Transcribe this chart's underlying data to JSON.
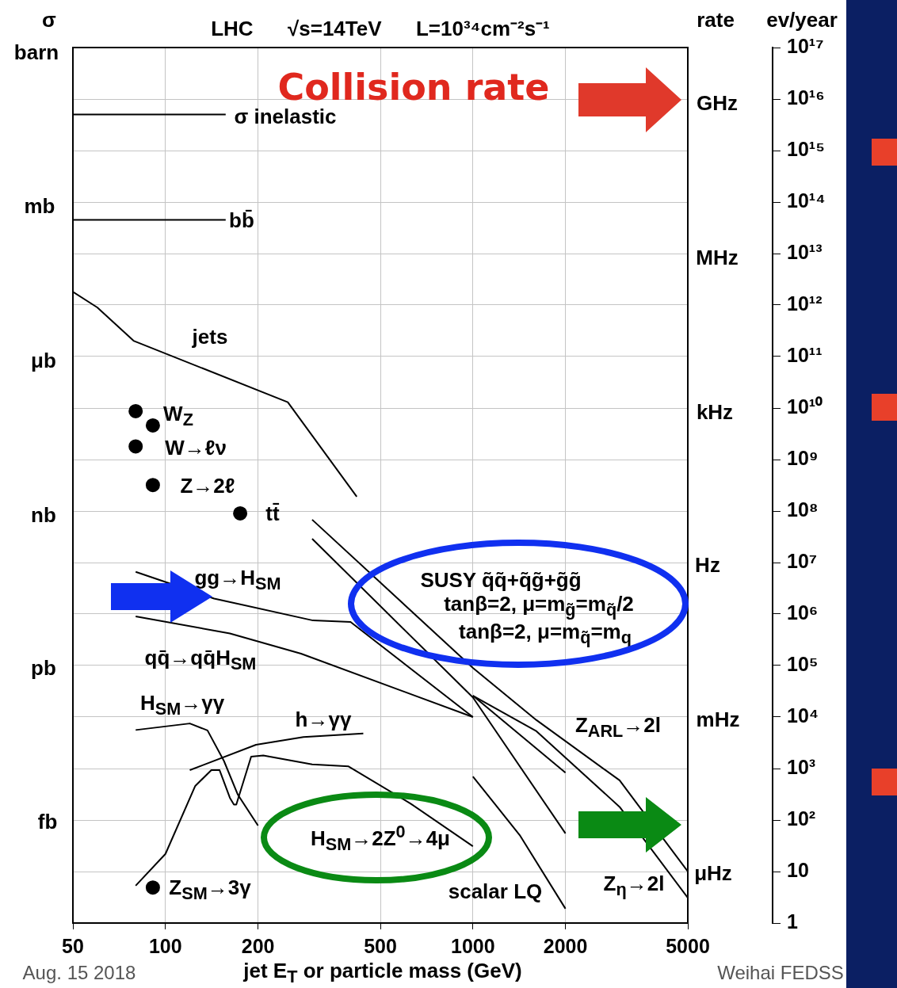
{
  "chart_data": {
    "type": "line",
    "title": "LHC      √s=14TeV      L=10³⁴cm⁻²s⁻¹",
    "xlabel": "jet E$_{T}$ or particle mass (GeV)",
    "ylabel": "ev/year",
    "log": "xy",
    "grid": true,
    "xlim": [
      50,
      5000
    ],
    "xticks": [
      50,
      100,
      200,
      500,
      1000,
      2000,
      5000
    ],
    "ylim": [
      1,
      1e+17
    ],
    "yticks": [
      {
        "value": 1e+17,
        "label": "10¹⁷"
      },
      {
        "value": 1e+16,
        "label": "10¹⁶"
      },
      {
        "value": 1000000000000000.0,
        "label": "10¹⁵"
      },
      {
        "value": 100000000000000.0,
        "label": "10¹⁴"
      },
      {
        "value": 10000000000000.0,
        "label": "10¹³"
      },
      {
        "value": 1000000000000.0,
        "label": "10¹²"
      },
      {
        "value": 100000000000.0,
        "label": "10¹¹"
      },
      {
        "value": 10000000000.0,
        "label": "10¹⁰"
      },
      {
        "value": 1000000000.0,
        "label": "10⁹"
      },
      {
        "value": 100000000.0,
        "label": "10⁸"
      },
      {
        "value": 10000000.0,
        "label": "10⁷"
      },
      {
        "value": 1000000.0,
        "label": "10⁶"
      },
      {
        "value": 100000.0,
        "label": "10⁵"
      },
      {
        "value": 10000.0,
        "label": "10⁴"
      },
      {
        "value": 1000,
        "label": "10³"
      },
      {
        "value": 100,
        "label": "10²"
      },
      10,
      1
    ],
    "series": [
      {
        "marker": "none",
        "color": "#000000",
        "x": [
          50,
          157
        ],
        "values": [
          5000000000000000.0,
          5000000000000000.0
        ]
      },
      {
        "marker": "none",
        "color": "#000000",
        "x": [
          50,
          157
        ],
        "values": [
          45000000000000.0,
          45000000000000.0
        ]
      },
      {
        "marker": "none",
        "color": "#000000",
        "x": [
          50,
          60,
          79,
          250,
          419
        ],
        "values": [
          1800000000000.0,
          900000000000.0,
          200000000000.0,
          13000000000.0,
          190000000.0
        ]
      },
      {
        "marker": "none",
        "color": "#000000",
        "x": [
          80,
          144,
          302,
          400,
          1000
        ],
        "values": [
          6600000.0,
          2000000.0,
          750000.0,
          700000.0,
          10000.0
        ]
      },
      {
        "marker": "none",
        "color": "#000000",
        "x": [
          80,
          162,
          276,
          1000
        ],
        "values": [
          900000.0,
          420000.0,
          170000.0,
          10000.0
        ]
      },
      {
        "marker": "none",
        "color": "#000000",
        "x": [
          80,
          120,
          137,
          155,
          172,
          200
        ],
        "values": [
          5600,
          7500,
          5500,
          1400,
          310,
          78
        ]
      },
      {
        "marker": "none",
        "color": "#000000",
        "x": [
          80,
          100,
          125,
          141,
          150,
          162,
          167,
          170,
          190,
          208,
          300,
          394,
          626,
          1000
        ],
        "values": [
          5.3,
          22,
          460,
          930,
          930,
          270,
          200,
          200,
          1700,
          1800,
          1200,
          1100,
          210,
          31
        ]
      },
      {
        "marker": "none",
        "color": "#000000",
        "x": [
          120,
          197,
          281,
          440
        ],
        "values": [
          930,
          2900,
          4100,
          4800
        ]
      },
      {
        "marker": "none",
        "color": "#000000",
        "x": [
          300,
          1000,
          1610,
          3000,
          5000
        ],
        "values": [
          68000000.0,
          90000.0,
          8700,
          590,
          10
        ]
      },
      {
        "marker": "none",
        "color": "#000000",
        "x": [
          300,
          1000,
          2000
        ],
        "values": [
          29000000.0,
          24000.0,
          55
        ]
      },
      {
        "marker": "none",
        "color": "#000000",
        "x": [
          1000,
          2000
        ],
        "values": [
          26000.0,
          830
        ]
      },
      {
        "marker": "none",
        "color": "#000000",
        "x": [
          1000,
          1610,
          3000,
          5000
        ],
        "values": [
          26000.0,
          5300,
          180,
          3.1
        ]
      },
      {
        "marker": "none",
        "color": "#000000",
        "x": [
          1000,
          1420,
          2000
        ],
        "values": [
          700,
          51,
          1.9
        ]
      },
      {
        "type": "scatter",
        "marker": "circle",
        "color": "#000000",
        "x": [
          80,
          91,
          80,
          91,
          175,
          91
        ],
        "values": [
          8700000000.0,
          4600000000.0,
          1800000000.0,
          320000000.0,
          90000000.0,
          4.9
        ]
      }
    ],
    "annotations": [
      "Collision rate",
      "σ",
      "barn",
      "mb",
      "μb",
      "nb",
      "pb",
      "fb",
      "rate",
      "GHz",
      "MHz",
      "kHz",
      "Hz",
      "mHz",
      "μHz",
      "σ inelastic",
      "bb̄",
      "jets",
      "W$_{Z}$",
      "W→ℓν",
      "Z→2ℓ",
      "tt̄",
      "gg→H$_{SM}$",
      "SUSY q̃q̃+q̃g̃+g̃g̃",
      "tanβ=2, μ=m$_{g̃}$=m$_{q̃}$/2",
      "tanβ=2, μ=m$_{q̃}$=m$_{q}$",
      "qq̄→qq̄H$_{SM}$",
      "H$_{SM}$→γγ",
      "h→γγ",
      "Z$_{ARL}$→2l",
      "H$_{SM}$→2Z$^{0}$→4μ",
      "scalar LQ",
      "Z$_{η}$→2l",
      "Z$_{SM}$→3γ",
      "Aug. 15 2018",
      "Weihai FEDSS"
    ]
  }
}
